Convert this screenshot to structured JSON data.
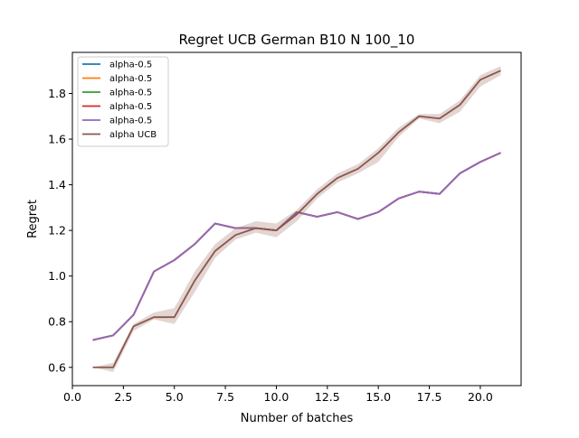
{
  "chart_data": {
    "type": "line",
    "title": "Regret UCB German B10 N 100_10",
    "xlabel": "Number of batches",
    "ylabel": "Regret",
    "xlim": [
      0.0,
      22.0
    ],
    "ylim": [
      0.52,
      1.98
    ],
    "xticks": [
      0.0,
      2.5,
      5.0,
      7.5,
      10.0,
      12.5,
      15.0,
      17.5,
      20.0
    ],
    "yticks": [
      0.6,
      0.8,
      1.0,
      1.2,
      1.4,
      1.6,
      1.8
    ],
    "xtick_labels": [
      "0.0",
      "2.5",
      "5.0",
      "7.5",
      "10.0",
      "12.5",
      "15.0",
      "17.5",
      "20.0"
    ],
    "ytick_labels": [
      "0.6",
      "0.8",
      "1.0",
      "1.2",
      "1.4",
      "1.6",
      "1.8"
    ],
    "grid": false,
    "legend_position": "top-left",
    "x": [
      1,
      2,
      3,
      4,
      5,
      6,
      7,
      8,
      9,
      10,
      11,
      12,
      13,
      14,
      15,
      16,
      17,
      18,
      19,
      20,
      21
    ],
    "series": [
      {
        "name": "alpha-0.5",
        "color": "#1f77b4",
        "values": [
          0.72,
          0.74,
          0.83,
          1.02,
          1.07,
          1.14,
          1.23,
          1.21,
          1.21,
          1.2,
          1.28,
          1.26,
          1.28,
          1.25,
          1.28,
          1.34,
          1.37,
          1.36,
          1.45,
          1.5,
          1.54
        ]
      },
      {
        "name": "alpha-0.5",
        "color": "#ff7f0e",
        "values": [
          0.72,
          0.74,
          0.83,
          1.02,
          1.07,
          1.14,
          1.23,
          1.21,
          1.21,
          1.2,
          1.28,
          1.26,
          1.28,
          1.25,
          1.28,
          1.34,
          1.37,
          1.36,
          1.45,
          1.5,
          1.54
        ]
      },
      {
        "name": "alpha-0.5",
        "color": "#2ca02c",
        "values": [
          0.72,
          0.74,
          0.83,
          1.02,
          1.07,
          1.14,
          1.23,
          1.21,
          1.21,
          1.2,
          1.28,
          1.26,
          1.28,
          1.25,
          1.28,
          1.34,
          1.37,
          1.36,
          1.45,
          1.5,
          1.54
        ]
      },
      {
        "name": "alpha-0.5",
        "color": "#d62728",
        "values": [
          0.72,
          0.74,
          0.83,
          1.02,
          1.07,
          1.14,
          1.23,
          1.21,
          1.21,
          1.2,
          1.28,
          1.26,
          1.28,
          1.25,
          1.28,
          1.34,
          1.37,
          1.36,
          1.45,
          1.5,
          1.54
        ]
      },
      {
        "name": "alpha-0.5",
        "color": "#9467bd",
        "values": [
          0.72,
          0.74,
          0.83,
          1.02,
          1.07,
          1.14,
          1.23,
          1.21,
          1.21,
          1.2,
          1.28,
          1.26,
          1.28,
          1.25,
          1.28,
          1.34,
          1.37,
          1.36,
          1.45,
          1.5,
          1.54
        ]
      },
      {
        "name": "alpha UCB",
        "color": "#8c564b",
        "values": [
          0.6,
          0.6,
          0.78,
          0.82,
          0.82,
          0.98,
          1.11,
          1.18,
          1.21,
          1.2,
          1.27,
          1.36,
          1.43,
          1.47,
          1.54,
          1.63,
          1.7,
          1.69,
          1.75,
          1.86,
          1.9
        ],
        "band_lower": [
          0.6,
          0.58,
          0.76,
          0.81,
          0.79,
          0.93,
          1.08,
          1.16,
          1.19,
          1.17,
          1.24,
          1.34,
          1.41,
          1.45,
          1.5,
          1.61,
          1.69,
          1.67,
          1.72,
          1.83,
          1.88
        ],
        "band_upper": [
          0.6,
          0.62,
          0.79,
          0.84,
          0.86,
          1.02,
          1.14,
          1.21,
          1.24,
          1.23,
          1.29,
          1.38,
          1.45,
          1.49,
          1.56,
          1.65,
          1.71,
          1.71,
          1.77,
          1.88,
          1.92
        ]
      }
    ]
  }
}
